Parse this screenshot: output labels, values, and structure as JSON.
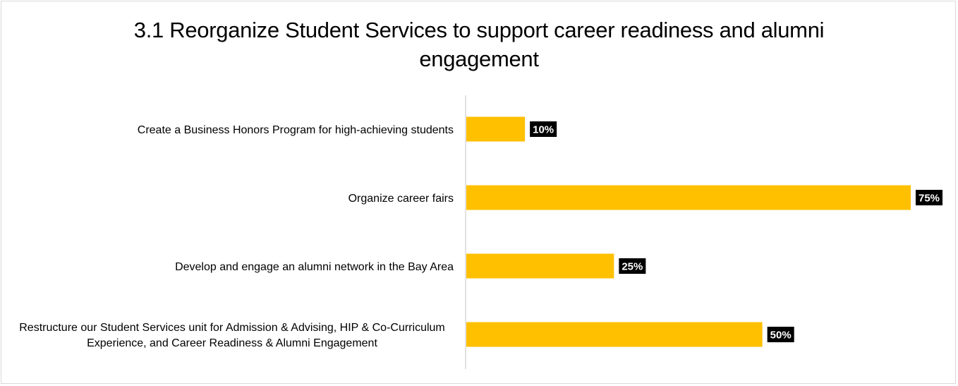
{
  "chart_data": {
    "type": "bar",
    "orientation": "horizontal",
    "title": "3.1 Reorganize Student Services to support career readiness and alumni engagement",
    "title_lines": [
      "3.1 Reorganize Student Services to support career readiness and alumni",
      "engagement"
    ],
    "categories": [
      "Create a Business Honors Program for high-achieving students",
      "Organize career fairs",
      "Develop and engage an alumni network in the Bay Area",
      "Restructure our Student Services unit for Admission & Advising, HIP & Co-Curriculum Experience, and Career Readiness & Alumni Engagement"
    ],
    "category_label_lines": [
      [
        "Create a Business Honors Program for high-achieving students"
      ],
      [
        "Organize career fairs"
      ],
      [
        "Develop and engage an alumni network in the Bay Area"
      ],
      [
        "Restructure our Student Services unit for Admission & Advising, HIP & Co-Curriculum",
        "Experience, and Career Readiness & Alumni Engagement"
      ]
    ],
    "values": [
      0.1,
      0.75,
      0.25,
      0.5
    ],
    "data_labels": [
      "10%",
      "75%",
      "25%",
      "50%"
    ],
    "xlim": [
      0,
      0.75
    ],
    "xlabel": "",
    "ylabel": "",
    "grid": false,
    "legend": "none",
    "colors": {
      "bar": "#FFC000",
      "data_label_bg": "#000000",
      "data_label_text": "#FFFFFF",
      "axis": "#d9d9d9"
    }
  }
}
